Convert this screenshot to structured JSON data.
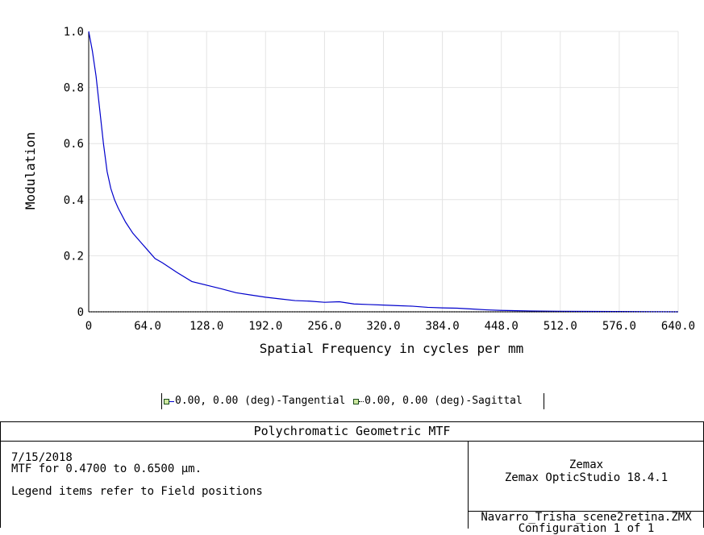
{
  "chart_data": {
    "type": "line",
    "xlabel": "Spatial Frequency in cycles per mm",
    "ylabel": "Modulation",
    "xlim": [
      0,
      640
    ],
    "ylim": [
      0,
      1.0
    ],
    "x_ticks": [
      "0",
      "64.0",
      "128.0",
      "192.0",
      "256.0",
      "320.0",
      "384.0",
      "448.0",
      "512.0",
      "576.0",
      "640.0"
    ],
    "y_ticks": [
      "0",
      "0.2",
      "0.4",
      "0.6",
      "0.8",
      "1.0"
    ],
    "grid": true,
    "series": [
      {
        "name": "0.00, 0.00 (deg)-Tangential",
        "color": "#0000cc",
        "x": [
          0,
          4,
          8,
          12,
          16,
          20,
          24,
          28,
          32,
          40,
          48,
          56,
          64,
          72,
          80,
          96,
          112,
          128,
          144,
          160,
          176,
          192,
          208,
          224,
          240,
          256,
          272,
          288,
          304,
          320,
          336,
          352,
          368,
          384,
          400,
          416,
          432,
          448,
          480,
          512,
          544,
          576,
          608,
          640
        ],
        "y": [
          1.0,
          0.93,
          0.84,
          0.72,
          0.6,
          0.5,
          0.44,
          0.4,
          0.37,
          0.32,
          0.28,
          0.25,
          0.22,
          0.19,
          0.175,
          0.14,
          0.108,
          0.095,
          0.082,
          0.068,
          0.06,
          0.052,
          0.046,
          0.04,
          0.038,
          0.034,
          0.036,
          0.028,
          0.026,
          0.024,
          0.022,
          0.02,
          0.016,
          0.014,
          0.013,
          0.01,
          0.007,
          0.005,
          0.003,
          0.002,
          0.0015,
          0.001,
          0.0005,
          0.0
        ]
      },
      {
        "name": "0.00, 0.00 (deg)-Sagittal",
        "color": "#000000",
        "x": [
          0,
          640
        ],
        "y": [
          0,
          0
        ]
      }
    ]
  },
  "legend": {
    "item1": "0.00, 0.00 (deg)-Tangential",
    "item2": "0.00, 0.00 (deg)-Sagittal"
  },
  "footer": {
    "title": "Polychromatic Geometric MTF",
    "date": "7/15/2018",
    "mtf_range": "MTF for 0.4700 to 0.6500 µm.",
    "legend_note": "Legend items refer to Field positions",
    "company": "Zemax",
    "product": "Zemax OpticStudio 18.4.1",
    "filename": "Navarro_Trisha_scene2retina.ZMX",
    "configuration": "Configuration 1 of 1"
  }
}
